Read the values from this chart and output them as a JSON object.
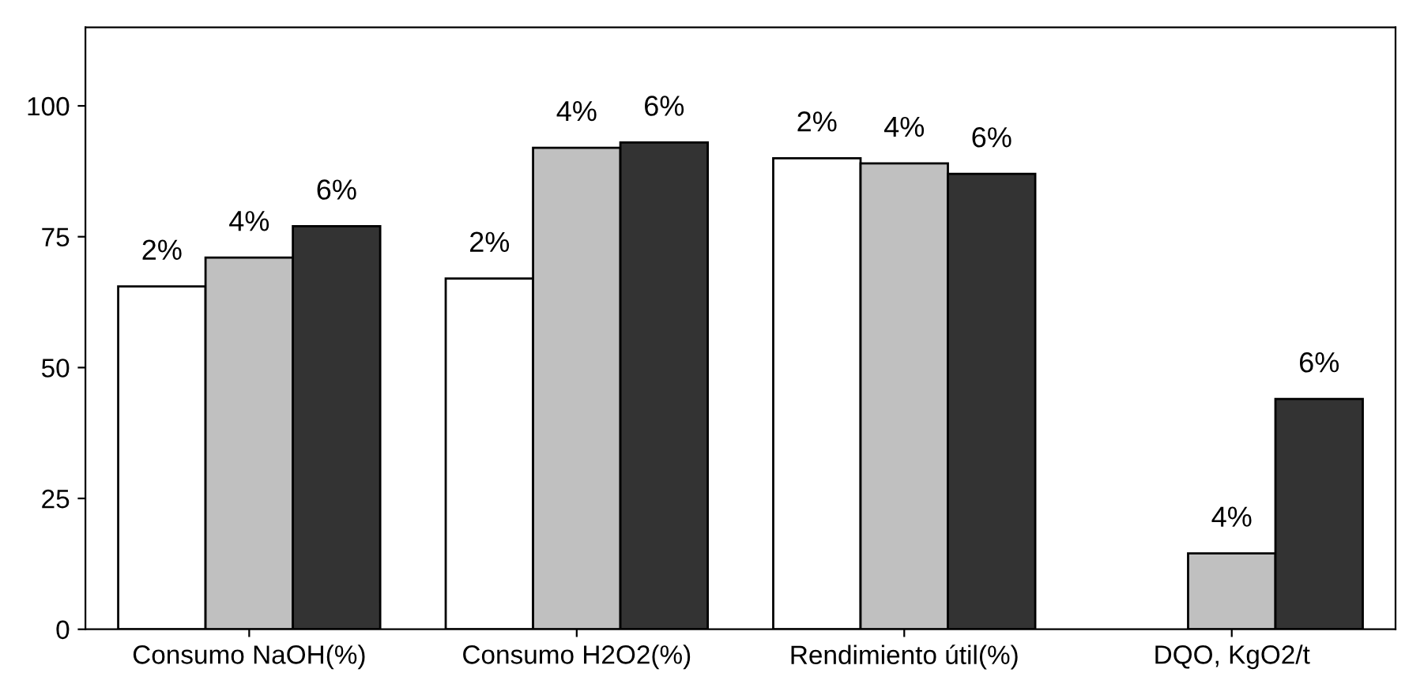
{
  "chart_data": {
    "type": "bar",
    "categories": [
      "Consumo NaOH(%)",
      "Consumo H2O2(%)",
      "Rendimiento útil(%)",
      "DQO, KgO2/t"
    ],
    "series": [
      {
        "name": "2%",
        "color": "#ffffff",
        "values": [
          65.5,
          67,
          90,
          null
        ]
      },
      {
        "name": "4%",
        "color": "#c0c0c0",
        "values": [
          71,
          92,
          89,
          14.5
        ]
      },
      {
        "name": "6%",
        "color": "#333333",
        "values": [
          77,
          93,
          87,
          44
        ]
      }
    ],
    "ylim": [
      0,
      115
    ],
    "yticks": [
      0,
      25,
      50,
      75,
      100
    ],
    "grid": false,
    "legend": false
  }
}
